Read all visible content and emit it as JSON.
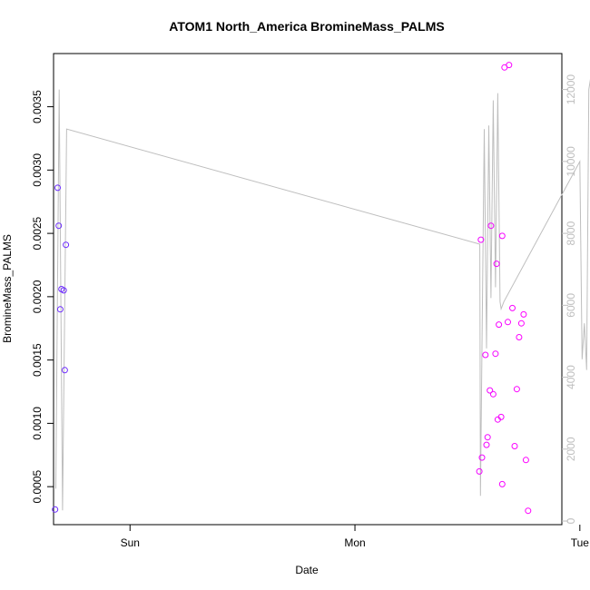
{
  "chart_data": {
    "type": "scatter",
    "title": "ATOM1 North_America BromineMass_PALMS",
    "xlabel": "Date",
    "ylabel": "BromineMass_PALMS",
    "x_unit": "days since Sun 00:00",
    "xlim": [
      -0.34,
      1.92
    ],
    "ylim": [
      0.0002,
      0.00392
    ],
    "y2lim": [
      -100,
      13000
    ],
    "x_ticks": [
      {
        "value": 0,
        "label": "Sun"
      },
      {
        "value": 1,
        "label": "Mon"
      },
      {
        "value": 2,
        "label": "Tue"
      }
    ],
    "y_ticks": [
      {
        "value": 0.0005,
        "label": "0.0005"
      },
      {
        "value": 0.001,
        "label": "0.0010"
      },
      {
        "value": 0.0015,
        "label": "0.0015"
      },
      {
        "value": 0.002,
        "label": "0.0020"
      },
      {
        "value": 0.0025,
        "label": "0.0025"
      },
      {
        "value": 0.003,
        "label": "0.0030"
      },
      {
        "value": 0.0035,
        "label": "0.0035"
      }
    ],
    "y2_ticks": [
      {
        "value": 0,
        "label": "0"
      },
      {
        "value": 2000,
        "label": "2000"
      },
      {
        "value": 4000,
        "label": "4000"
      },
      {
        "value": 6000,
        "label": "6000"
      },
      {
        "value": 8000,
        "label": "8000"
      },
      {
        "value": 10000,
        "label": "10000"
      },
      {
        "value": 12000,
        "label": "12000"
      }
    ],
    "grid": false,
    "legend": "none",
    "colors": {
      "line": "#bebebe",
      "points_start": "#6a2bff",
      "points_end": "#ff00ff",
      "frame": "#000000"
    },
    "series": [
      {
        "kind": "points",
        "axis": "left",
        "x": [
          -0.333,
          -0.322,
          -0.317,
          -0.31,
          -0.305,
          -0.295,
          -0.29,
          -0.285,
          1.553,
          1.56,
          1.565,
          1.58,
          1.585,
          1.59,
          1.6,
          1.605,
          1.615,
          1.625,
          1.63,
          1.635,
          1.64,
          1.65,
          1.655,
          1.655,
          1.665,
          1.68,
          1.685,
          1.7,
          1.71,
          1.72,
          1.73,
          1.74,
          1.75,
          1.76,
          1.77
        ],
        "y": [
          0.00032,
          0.00286,
          0.00256,
          0.0019,
          0.00206,
          0.00205,
          0.00142,
          0.00241,
          0.00062,
          0.00245,
          0.00073,
          0.00154,
          0.00083,
          0.00089,
          0.00126,
          0.00256,
          0.00123,
          0.00155,
          0.00226,
          0.00103,
          0.00178,
          0.00105,
          0.00248,
          0.00052,
          0.00381,
          0.0018,
          0.00383,
          0.00191,
          0.00082,
          0.00127,
          0.00168,
          0.00179,
          0.00186,
          0.00071,
          0.00031
        ]
      },
      {
        "kind": "line",
        "axis": "right",
        "x": [
          -0.33,
          -0.315,
          -0.3,
          -0.282,
          1.555,
          1.558,
          1.575,
          1.585,
          1.595,
          1.605,
          1.615,
          1.625,
          1.635,
          1.645,
          1.65,
          1.662,
          2.0,
          2.01,
          2.02,
          2.03,
          2.04,
          2.05,
          2.06,
          2.07,
          2.08
        ],
        "y": [
          900,
          12000,
          300,
          10900,
          7700,
          700,
          10900,
          4800,
          11000,
          6200,
          11700,
          6500,
          11900,
          6100,
          5900,
          6100,
          10000,
          4500,
          5500,
          4200,
          12000,
          12400,
          12600,
          11500,
          7200
        ]
      }
    ]
  }
}
